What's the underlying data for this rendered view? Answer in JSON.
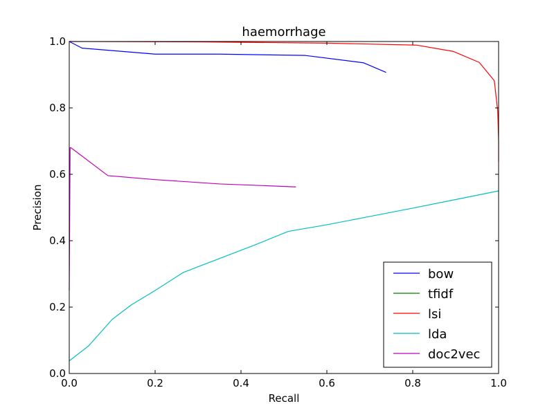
{
  "chart_data": {
    "type": "line",
    "title": "haemorrhage",
    "xlabel": "Recall",
    "ylabel": "Precision",
    "xlim": [
      0.0,
      1.0
    ],
    "ylim": [
      0.0,
      1.0
    ],
    "xticks": [
      "0.0",
      "0.2",
      "0.4",
      "0.6",
      "0.8",
      "1.0"
    ],
    "yticks": [
      "0.0",
      "0.2",
      "0.4",
      "0.6",
      "0.8",
      "1.0"
    ],
    "grid": false,
    "legend_position": "lower-right",
    "series": [
      {
        "name": "bow",
        "color": "#0000ff",
        "x": [
          0.0,
          0.03,
          0.2,
          0.35,
          0.55,
          0.685,
          0.738
        ],
        "y": [
          1.0,
          0.98,
          0.962,
          0.962,
          0.958,
          0.936,
          0.907
        ]
      },
      {
        "name": "tfidf",
        "color": "#008000",
        "x": [
          0.0,
          0.0
        ],
        "y": [
          1.0,
          1.0
        ]
      },
      {
        "name": "lsi",
        "color": "#ff0000",
        "x": [
          0.0,
          0.3,
          0.6,
          0.81,
          0.895,
          0.955,
          0.99,
          0.998,
          1.0,
          1.0
        ],
        "y": [
          1.0,
          0.999,
          0.995,
          0.989,
          0.97,
          0.937,
          0.882,
          0.79,
          0.7,
          0.638
        ]
      },
      {
        "name": "lda",
        "color": "#00bfbf",
        "x": [
          0.0,
          0.045,
          0.1,
          0.145,
          0.2,
          0.265,
          0.345,
          0.43,
          0.51,
          0.6,
          0.7,
          0.8,
          0.9,
          1.0
        ],
        "y": [
          0.038,
          0.083,
          0.163,
          0.207,
          0.25,
          0.304,
          0.344,
          0.386,
          0.428,
          0.448,
          0.473,
          0.498,
          0.524,
          0.55
        ]
      },
      {
        "name": "doc2vec",
        "color": "#bf00bf",
        "x": [
          0.0,
          0.002,
          0.004,
          0.09,
          0.2,
          0.35,
          0.45,
          0.528
        ],
        "y": [
          0.25,
          0.68,
          0.68,
          0.596,
          0.584,
          0.571,
          0.566,
          0.562
        ]
      }
    ]
  }
}
